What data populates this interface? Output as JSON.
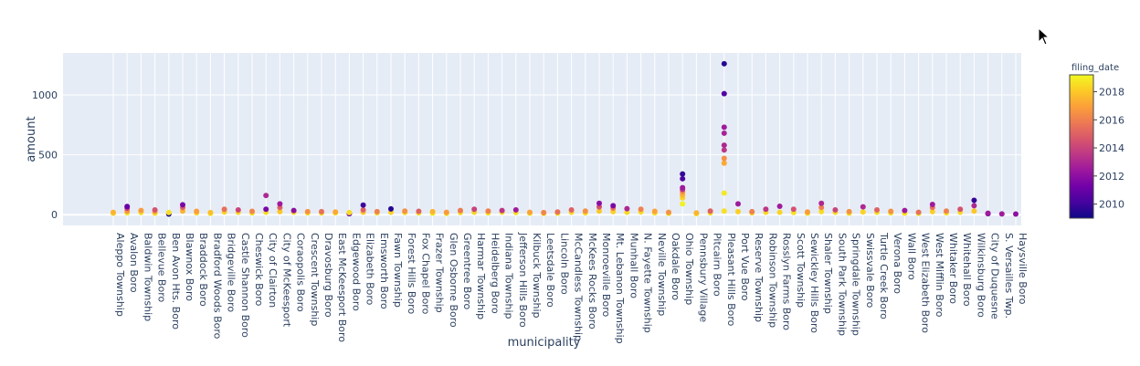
{
  "chart_data": {
    "type": "scatter",
    "xlabel": "municipality",
    "ylabel": "amount",
    "ylim": [
      -90,
      1350
    ],
    "yticks": [
      0,
      500,
      1000
    ],
    "colorbar": {
      "title": "filing_date",
      "range": [
        2009,
        2019.2
      ],
      "ticks": [
        2010,
        2012,
        2014,
        2016,
        2018
      ],
      "colorscale": [
        "#0d0887",
        "#46039f",
        "#7201a8",
        "#9c179e",
        "#bd3786",
        "#d8576b",
        "#ed7953",
        "#fb9f3a",
        "#fdca26",
        "#f0f921"
      ]
    },
    "categories": [
      "Aleppo Township",
      "Avalon Boro",
      "Baldwin Township",
      "Bellevue Boro",
      "Ben Avon Hts. Boro",
      "Blawnox Boro",
      "Braddock Boro",
      "Bradford Woods Boro",
      "Bridgeville Boro",
      "Castle Shannon Boro",
      "Cheswick Boro",
      "City of Clairton",
      "City of McKeesport",
      "Coraopolis Boro",
      "Crescent Township",
      "Dravosburg Boro",
      "East McKeesport Boro",
      "Edgewood Boro",
      "Elizabeth Boro",
      "Emsworth Boro",
      "Fawn Township",
      "Forest Hills Boro",
      "Fox Chapel Boro",
      "Frazer Township",
      "Glen Osborne Boro",
      "Greentree Boro",
      "Harmar Township",
      "Heidelberg Boro",
      "Indiana Township",
      "Jefferson Hills Boro",
      "Kilbuck Township",
      "Leetsdale Boro",
      "Lincoln Boro",
      "McCandless Township",
      "McKees Rocks Boro",
      "Monroeville Boro",
      "Mt. Lebanon Township",
      "Munhall Boro",
      "N. Fayette Township",
      "Neville Township",
      "Oakdale Boro",
      "Ohio Township",
      "Pennsbury Village",
      "Pitcairn Boro",
      "Pleasant Hills Boro",
      "Port Vue Boro",
      "Reserve Township",
      "Robinson Township",
      "Rosslyn Farms Boro",
      "Scott Township",
      "Sewickley Hills Boro",
      "Shaler Township",
      "South Park Township",
      "Springdale Township",
      "Swissvale Boro",
      "Turtle Creek Boro",
      "Verona Boro",
      "Wall Boro",
      "West Elizabeth Boro",
      "West Mifflin Boro",
      "Whitaker Boro",
      "Whitehall Boro",
      "Wilkinsburg Boro",
      "City of Duquesne",
      "S. Versailles Twp.",
      "Haysville Boro"
    ],
    "points": [
      {
        "x": "Aleppo Township",
        "y": 12,
        "date": 2018.5
      },
      {
        "x": "Aleppo Township",
        "y": 20,
        "date": 2017.5
      },
      {
        "x": "Avalon Boro",
        "y": 15,
        "date": 2018.8
      },
      {
        "x": "Avalon Boro",
        "y": 30,
        "date": 2016.5
      },
      {
        "x": "Avalon Boro",
        "y": 55,
        "date": 2013.5
      },
      {
        "x": "Avalon Boro",
        "y": 68,
        "date": 2011.0
      },
      {
        "x": "Baldwin Township",
        "y": 18,
        "date": 2018.6
      },
      {
        "x": "Baldwin Township",
        "y": 35,
        "date": 2016.8
      },
      {
        "x": "Bellevue Boro",
        "y": 12,
        "date": 2018.7
      },
      {
        "x": "Bellevue Boro",
        "y": 25,
        "date": 2017.0
      },
      {
        "x": "Bellevue Boro",
        "y": 40,
        "date": 2014.5
      },
      {
        "x": "Ben Avon Hts. Boro",
        "y": 5,
        "date": 2009.3
      },
      {
        "x": "Ben Avon Hts. Boro",
        "y": 18,
        "date": 2018.6
      },
      {
        "x": "Blawnox Boro",
        "y": 30,
        "date": 2017.5
      },
      {
        "x": "Blawnox Boro",
        "y": 60,
        "date": 2015.0
      },
      {
        "x": "Blawnox Boro",
        "y": 82,
        "date": 2011.5
      },
      {
        "x": "Braddock Boro",
        "y": 15,
        "date": 2018.4
      },
      {
        "x": "Braddock Boro",
        "y": 28,
        "date": 2016.9
      },
      {
        "x": "Bradford Woods Boro",
        "y": 10,
        "date": 2018.9
      },
      {
        "x": "Bradford Woods Boro",
        "y": 18,
        "date": 2017.8
      },
      {
        "x": "Bridgeville Boro",
        "y": 22,
        "date": 2018.2
      },
      {
        "x": "Bridgeville Boro",
        "y": 45,
        "date": 2015.5
      },
      {
        "x": "Castle Shannon Boro",
        "y": 20,
        "date": 2018.3
      },
      {
        "x": "Castle Shannon Boro",
        "y": 40,
        "date": 2014.0
      },
      {
        "x": "Cheswick Boro",
        "y": 15,
        "date": 2018.6
      },
      {
        "x": "Cheswick Boro",
        "y": 28,
        "date": 2016.2
      },
      {
        "x": "City of Clairton",
        "y": 20,
        "date": 2018.5
      },
      {
        "x": "City of Clairton",
        "y": 45,
        "date": 2011.5
      },
      {
        "x": "City of Clairton",
        "y": 160,
        "date": 2013.0
      },
      {
        "x": "City of McKeesport",
        "y": 25,
        "date": 2018.0
      },
      {
        "x": "City of McKeesport",
        "y": 60,
        "date": 2015.0
      },
      {
        "x": "City of McKeesport",
        "y": 90,
        "date": 2012.5
      },
      {
        "x": "Coraopolis Boro",
        "y": 20,
        "date": 2018.4
      },
      {
        "x": "Coraopolis Boro",
        "y": 35,
        "date": 2012.0
      },
      {
        "x": "Crescent Township",
        "y": 15,
        "date": 2018.8
      },
      {
        "x": "Crescent Township",
        "y": 25,
        "date": 2016.5
      },
      {
        "x": "Dravosburg Boro",
        "y": 14,
        "date": 2018.5
      },
      {
        "x": "Dravosburg Boro",
        "y": 25,
        "date": 2015.5
      },
      {
        "x": "East McKeesport Boro",
        "y": 15,
        "date": 2018.7
      },
      {
        "x": "East McKeesport Boro",
        "y": 22,
        "date": 2017.2
      },
      {
        "x": "Edgewood Boro",
        "y": 8,
        "date": 2011.0
      },
      {
        "x": "Edgewood Boro",
        "y": 18,
        "date": 2018.5
      },
      {
        "x": "Elizabeth Boro",
        "y": 20,
        "date": 2018.0
      },
      {
        "x": "Elizabeth Boro",
        "y": 40,
        "date": 2015.0
      },
      {
        "x": "Elizabeth Boro",
        "y": 80,
        "date": 2010.0
      },
      {
        "x": "Emsworth Boro",
        "y": 15,
        "date": 2018.6
      },
      {
        "x": "Emsworth Boro",
        "y": 25,
        "date": 2016.0
      },
      {
        "x": "Fawn Township",
        "y": 20,
        "date": 2018.2
      },
      {
        "x": "Fawn Township",
        "y": 48,
        "date": 2009.5
      },
      {
        "x": "Forest Hills Boro",
        "y": 18,
        "date": 2018.5
      },
      {
        "x": "Forest Hills Boro",
        "y": 30,
        "date": 2016.5
      },
      {
        "x": "Fox Chapel Boro",
        "y": 15,
        "date": 2018.6
      },
      {
        "x": "Fox Chapel Boro",
        "y": 28,
        "date": 2015.0
      },
      {
        "x": "Frazer Township",
        "y": 12,
        "date": 2018.9
      },
      {
        "x": "Frazer Township",
        "y": 25,
        "date": 2017.5
      },
      {
        "x": "Glen Osborne Boro",
        "y": 10,
        "date": 2018.7
      },
      {
        "x": "Glen Osborne Boro",
        "y": 20,
        "date": 2016.8
      },
      {
        "x": "Greentree Boro",
        "y": 18,
        "date": 2018.4
      },
      {
        "x": "Greentree Boro",
        "y": 35,
        "date": 2015.8
      },
      {
        "x": "Harmar Township",
        "y": 20,
        "date": 2018.3
      },
      {
        "x": "Harmar Township",
        "y": 45,
        "date": 2014.0
      },
      {
        "x": "Heidelberg Boro",
        "y": 15,
        "date": 2018.6
      },
      {
        "x": "Heidelberg Boro",
        "y": 30,
        "date": 2016.0
      },
      {
        "x": "Indiana Township",
        "y": 20,
        "date": 2018.4
      },
      {
        "x": "Indiana Township",
        "y": 35,
        "date": 2013.5
      },
      {
        "x": "Jefferson Hills Boro",
        "y": 18,
        "date": 2018.5
      },
      {
        "x": "Jefferson Hills Boro",
        "y": 40,
        "date": 2012.5
      },
      {
        "x": "Kilbuck Township",
        "y": 12,
        "date": 2018.8
      },
      {
        "x": "Kilbuck Township",
        "y": 20,
        "date": 2017.0
      },
      {
        "x": "Leetsdale Boro",
        "y": 10,
        "date": 2018.6
      },
      {
        "x": "Leetsdale Boro",
        "y": 18,
        "date": 2016.2
      },
      {
        "x": "Lincoln Boro",
        "y": 12,
        "date": 2018.7
      },
      {
        "x": "Lincoln Boro",
        "y": 22,
        "date": 2015.5
      },
      {
        "x": "McCandless Township",
        "y": 20,
        "date": 2018.3
      },
      {
        "x": "McCandless Township",
        "y": 40,
        "date": 2015.0
      },
      {
        "x": "McKees Rocks Boro",
        "y": 15,
        "date": 2018.5
      },
      {
        "x": "McKees Rocks Boro",
        "y": 30,
        "date": 2016.5
      },
      {
        "x": "Monroeville Boro",
        "y": 30,
        "date": 2018.0
      },
      {
        "x": "Monroeville Boro",
        "y": 65,
        "date": 2014.5
      },
      {
        "x": "Monroeville Boro",
        "y": 95,
        "date": 2012.0
      },
      {
        "x": "Mt. Lebanon Township",
        "y": 25,
        "date": 2018.2
      },
      {
        "x": "Mt. Lebanon Township",
        "y": 55,
        "date": 2015.5
      },
      {
        "x": "Mt. Lebanon Township",
        "y": 75,
        "date": 2011.5
      },
      {
        "x": "Munhall Boro",
        "y": 20,
        "date": 2018.4
      },
      {
        "x": "Munhall Boro",
        "y": 50,
        "date": 2013.0
      },
      {
        "x": "N. Fayette Township",
        "y": 22,
        "date": 2018.5
      },
      {
        "x": "N. Fayette Township",
        "y": 45,
        "date": 2016.0
      },
      {
        "x": "Neville Township",
        "y": 15,
        "date": 2018.6
      },
      {
        "x": "Neville Township",
        "y": 28,
        "date": 2017.0
      },
      {
        "x": "Oakdale Boro",
        "y": 10,
        "date": 2018.7
      },
      {
        "x": "Oakdale Boro",
        "y": 20,
        "date": 2016.5
      },
      {
        "x": "Ohio Township",
        "y": 90,
        "date": 2019.0
      },
      {
        "x": "Ohio Township",
        "y": 140,
        "date": 2018.3
      },
      {
        "x": "Ohio Township",
        "y": 165,
        "date": 2017.5
      },
      {
        "x": "Ohio Township",
        "y": 190,
        "date": 2016.5
      },
      {
        "x": "Ohio Township",
        "y": 210,
        "date": 2013.5
      },
      {
        "x": "Ohio Township",
        "y": 225,
        "date": 2012.5
      },
      {
        "x": "Ohio Township",
        "y": 300,
        "date": 2010.3
      },
      {
        "x": "Ohio Township",
        "y": 340,
        "date": 2009.8
      },
      {
        "x": "Pennsbury Village",
        "y": 8,
        "date": 2018.9
      },
      {
        "x": "Pennsbury Village",
        "y": 15,
        "date": 2017.5
      },
      {
        "x": "Pitcairn Boro",
        "y": 15,
        "date": 2018.5
      },
      {
        "x": "Pitcairn Boro",
        "y": 30,
        "date": 2015.0
      },
      {
        "x": "Pleasant Hills Boro",
        "y": 30,
        "date": 2018.6
      },
      {
        "x": "Pleasant Hills Boro",
        "y": 180,
        "date": 2018.8
      },
      {
        "x": "Pleasant Hills Boro",
        "y": 430,
        "date": 2017.2
      },
      {
        "x": "Pleasant Hills Boro",
        "y": 470,
        "date": 2016.5
      },
      {
        "x": "Pleasant Hills Boro",
        "y": 540,
        "date": 2013.5
      },
      {
        "x": "Pleasant Hills Boro",
        "y": 580,
        "date": 2013.0
      },
      {
        "x": "Pleasant Hills Boro",
        "y": 680,
        "date": 2012.8
      },
      {
        "x": "Pleasant Hills Boro",
        "y": 730,
        "date": 2012.5
      },
      {
        "x": "Pleasant Hills Boro",
        "y": 1010,
        "date": 2010.5
      },
      {
        "x": "Pleasant Hills Boro",
        "y": 1260,
        "date": 2009.5
      },
      {
        "x": "Port Vue Boro",
        "y": 25,
        "date": 2018.2
      },
      {
        "x": "Port Vue Boro",
        "y": 90,
        "date": 2012.5
      },
      {
        "x": "Reserve Township",
        "y": 15,
        "date": 2018.5
      },
      {
        "x": "Reserve Township",
        "y": 25,
        "date": 2016.0
      },
      {
        "x": "Robinson Township",
        "y": 20,
        "date": 2018.4
      },
      {
        "x": "Robinson Township",
        "y": 45,
        "date": 2013.5
      },
      {
        "x": "Rosslyn Farms Boro",
        "y": 20,
        "date": 2018.3
      },
      {
        "x": "Rosslyn Farms Boro",
        "y": 70,
        "date": 2012.5
      },
      {
        "x": "Scott Township",
        "y": 18,
        "date": 2018.6
      },
      {
        "x": "Scott Township",
        "y": 45,
        "date": 2014.5
      },
      {
        "x": "Sewickley Hills Boro",
        "y": 12,
        "date": 2018.7
      },
      {
        "x": "Sewickley Hills Boro",
        "y": 22,
        "date": 2016.8
      },
      {
        "x": "Shaler Township",
        "y": 25,
        "date": 2018.5
      },
      {
        "x": "Shaler Township",
        "y": 60,
        "date": 2016.0
      },
      {
        "x": "Shaler Township",
        "y": 95,
        "date": 2013.0
      },
      {
        "x": "South Park Township",
        "y": 20,
        "date": 2018.4
      },
      {
        "x": "South Park Township",
        "y": 40,
        "date": 2014.0
      },
      {
        "x": "Springdale Township",
        "y": 12,
        "date": 2018.7
      },
      {
        "x": "Springdale Township",
        "y": 25,
        "date": 2016.5
      },
      {
        "x": "Swissvale Boro",
        "y": 22,
        "date": 2018.3
      },
      {
        "x": "Swissvale Boro",
        "y": 65,
        "date": 2013.0
      },
      {
        "x": "Turtle Creek Boro",
        "y": 20,
        "date": 2018.5
      },
      {
        "x": "Turtle Creek Boro",
        "y": 40,
        "date": 2015.0
      },
      {
        "x": "Verona Boro",
        "y": 15,
        "date": 2018.6
      },
      {
        "x": "Verona Boro",
        "y": 28,
        "date": 2016.5
      },
      {
        "x": "Wall Boro",
        "y": 12,
        "date": 2018.7
      },
      {
        "x": "Wall Boro",
        "y": 35,
        "date": 2012.5
      },
      {
        "x": "West Elizabeth Boro",
        "y": 10,
        "date": 2018.9
      },
      {
        "x": "West Elizabeth Boro",
        "y": 20,
        "date": 2015.5
      },
      {
        "x": "West Mifflin Boro",
        "y": 25,
        "date": 2018.2
      },
      {
        "x": "West Mifflin Boro",
        "y": 60,
        "date": 2015.5
      },
      {
        "x": "West Mifflin Boro",
        "y": 85,
        "date": 2012.5
      },
      {
        "x": "Whitaker Boro",
        "y": 15,
        "date": 2018.6
      },
      {
        "x": "Whitaker Boro",
        "y": 30,
        "date": 2016.0
      },
      {
        "x": "Whitehall Boro",
        "y": 20,
        "date": 2018.4
      },
      {
        "x": "Whitehall Boro",
        "y": 45,
        "date": 2014.5
      },
      {
        "x": "Wilkinsburg Boro",
        "y": 30,
        "date": 2018.0
      },
      {
        "x": "Wilkinsburg Boro",
        "y": 75,
        "date": 2013.0
      },
      {
        "x": "Wilkinsburg Boro",
        "y": 120,
        "date": 2009.8
      },
      {
        "x": "City of Duquesne",
        "y": 8,
        "date": 2011.0
      },
      {
        "x": "City of Duquesne",
        "y": 12,
        "date": 2012.5
      },
      {
        "x": "S. Versailles Twp.",
        "y": 6,
        "date": 2012.5
      },
      {
        "x": "Haysville Boro",
        "y": 5,
        "date": 2012.0
      }
    ]
  }
}
